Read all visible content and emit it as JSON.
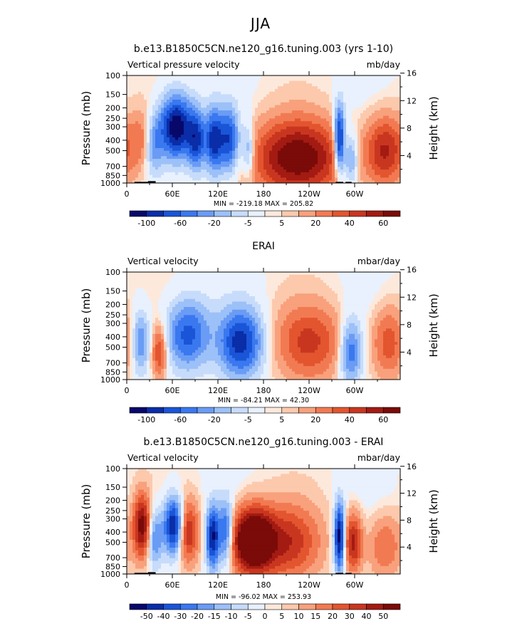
{
  "figure": {
    "title": "JJA"
  },
  "chart_data": [
    {
      "type": "heatmap",
      "title": "b.e13.B1850C5CN.ne120_g16.tuning.003 (yrs 1-10)",
      "left_string": "Vertical pressure velocity",
      "right_string": "mb/day",
      "ylabel": "Pressure (mb)",
      "ylabel_right": "Height (km)",
      "x_ticklabels": [
        "0",
        "60E",
        "120E",
        "180",
        "120W",
        "60W"
      ],
      "x_tick_lon": [
        0,
        60,
        120,
        180,
        240,
        300
      ],
      "xlim": [
        0,
        360
      ],
      "y_ticklabels": [
        "100",
        "150",
        "200",
        "250",
        "300",
        "400",
        "500",
        "700",
        "850",
        "1000"
      ],
      "y_tick_pressure": [
        100,
        150,
        200,
        250,
        300,
        400,
        500,
        700,
        850,
        1000
      ],
      "ylim": [
        1000,
        100
      ],
      "y_scale": "log",
      "y_right_ticklabels": [
        "4",
        "8",
        "12",
        "16"
      ],
      "y_right_height_km": [
        4,
        8,
        12,
        16
      ],
      "min_max_label": "MIN = -219.18   MAX = 205.82",
      "min": -219.18,
      "max": 205.82,
      "colorbar_labels": [
        "-100",
        "-60",
        "-20",
        "-5",
        "5",
        "20",
        "40",
        "60"
      ],
      "colorbar_levels": [
        -120,
        -100,
        -80,
        -60,
        -40,
        -20,
        -10,
        -5,
        0,
        5,
        10,
        20,
        40,
        60,
        80,
        100,
        120
      ],
      "topography": true,
      "features": [
        {
          "lon": 20,
          "amp": 0.7,
          "width": 10,
          "p_center": 400,
          "spread": 1.1
        },
        {
          "lon": 35,
          "amp": -1.0,
          "width": 9,
          "p_center": 450,
          "spread": 1.1
        },
        {
          "lon": 65,
          "amp": -2.6,
          "width": 15,
          "p_center": 300,
          "spread": 1.2
        },
        {
          "lon": 92,
          "amp": -1.7,
          "width": 8,
          "p_center": 400,
          "spread": 1.1
        },
        {
          "lon": 115,
          "amp": -2.0,
          "width": 8,
          "p_center": 400,
          "spread": 1.2
        },
        {
          "lon": 135,
          "amp": -1.8,
          "width": 9,
          "p_center": 400,
          "spread": 1.2
        },
        {
          "lon": 160,
          "amp": -1.0,
          "width": 6,
          "p_center": 500,
          "spread": 1.0
        },
        {
          "lon": 225,
          "amp": 2.2,
          "width": 40,
          "p_center": 580,
          "spread": 1.4
        },
        {
          "lon": 280,
          "amp": -2.4,
          "width": 5,
          "p_center": 400,
          "spread": 1.3
        },
        {
          "lon": 295,
          "amp": -1.2,
          "width": 7,
          "p_center": 600,
          "spread": 1.0
        },
        {
          "lon": 340,
          "amp": 1.5,
          "width": 18,
          "p_center": 500,
          "spread": 1.3
        }
      ]
    },
    {
      "type": "heatmap",
      "title": "ERAI",
      "left_string": "Vertical velocity",
      "right_string": "mbar/day",
      "ylabel": "Pressure (mb)",
      "ylabel_right": "Height (km)",
      "x_ticklabels": [
        "0",
        "60E",
        "120E",
        "180",
        "120W",
        "60W"
      ],
      "x_tick_lon": [
        0,
        60,
        120,
        180,
        240,
        300
      ],
      "xlim": [
        0,
        360
      ],
      "y_ticklabels": [
        "100",
        "150",
        "200",
        "250",
        "300",
        "400",
        "500",
        "700",
        "850",
        "1000"
      ],
      "y_tick_pressure": [
        100,
        150,
        200,
        250,
        300,
        400,
        500,
        700,
        850,
        1000
      ],
      "ylim": [
        1000,
        100
      ],
      "y_scale": "log",
      "y_right_ticklabels": [
        "4",
        "8",
        "12",
        "16"
      ],
      "y_right_height_km": [
        4,
        8,
        12,
        16
      ],
      "min_max_label": "MIN = -84.21   MAX =  42.30",
      "min": -84.21,
      "max": 42.3,
      "colorbar_labels": [
        "-100",
        "-60",
        "-20",
        "-5",
        "5",
        "20",
        "40",
        "60"
      ],
      "colorbar_levels": [
        -120,
        -100,
        -80,
        -60,
        -40,
        -20,
        -10,
        -5,
        0,
        5,
        10,
        20,
        40,
        60,
        80,
        100,
        120
      ],
      "topography": false,
      "features": [
        {
          "lon": 18,
          "amp": -1.1,
          "width": 8,
          "p_center": 450,
          "spread": 1.2
        },
        {
          "lon": 43,
          "amp": 1.2,
          "width": 7,
          "p_center": 550,
          "spread": 1.0
        },
        {
          "lon": 80,
          "amp": -1.6,
          "width": 20,
          "p_center": 380,
          "spread": 1.3
        },
        {
          "lon": 150,
          "amp": -2.0,
          "width": 20,
          "p_center": 450,
          "spread": 1.3
        },
        {
          "lon": 240,
          "amp": 1.2,
          "width": 30,
          "p_center": 450,
          "spread": 1.4
        },
        {
          "lon": 295,
          "amp": -1.4,
          "width": 10,
          "p_center": 550,
          "spread": 1.2
        },
        {
          "lon": 345,
          "amp": 1.0,
          "width": 15,
          "p_center": 450,
          "spread": 1.3
        }
      ]
    },
    {
      "type": "heatmap",
      "title": "b.e13.B1850C5CN.ne120_g16.tuning.003 - ERAI",
      "left_string": "Vertical velocity",
      "right_string": "mbar/day",
      "ylabel": "Pressure (mb)",
      "ylabel_right": "Height (km)",
      "x_ticklabels": [
        "0",
        "60E",
        "120E",
        "180",
        "120W",
        "60W"
      ],
      "x_tick_lon": [
        0,
        60,
        120,
        180,
        240,
        300
      ],
      "xlim": [
        0,
        360
      ],
      "y_ticklabels": [
        "100",
        "150",
        "200",
        "250",
        "300",
        "400",
        "500",
        "700",
        "850",
        "1000"
      ],
      "y_tick_pressure": [
        100,
        150,
        200,
        250,
        300,
        400,
        500,
        700,
        850,
        1000
      ],
      "ylim": [
        1000,
        100
      ],
      "y_scale": "log",
      "y_right_ticklabels": [
        "4",
        "8",
        "12",
        "16"
      ],
      "y_right_height_km": [
        4,
        8,
        12,
        16
      ],
      "min_max_label": "MIN = -96.02   MAX = 253.93",
      "min": -96.02,
      "max": 253.93,
      "colorbar_labels": [
        "-50",
        "-40",
        "-30",
        "-20",
        "-15",
        "-10",
        "-5",
        "0",
        "5",
        "10",
        "15",
        "20",
        "30",
        "40",
        "50"
      ],
      "colorbar_levels": [
        -60,
        -50,
        -40,
        -30,
        -20,
        -15,
        -10,
        -5,
        0,
        5,
        10,
        15,
        20,
        30,
        40,
        50,
        60
      ],
      "topography": true,
      "features": [
        {
          "lon": 20,
          "amp": 2.0,
          "width": 8,
          "p_center": 350,
          "spread": 1.2
        },
        {
          "lon": 37,
          "amp": -1.2,
          "width": 7,
          "p_center": 450,
          "spread": 1.1
        },
        {
          "lon": 62,
          "amp": -2.4,
          "width": 9,
          "p_center": 350,
          "spread": 1.1
        },
        {
          "lon": 80,
          "amp": 1.5,
          "width": 10,
          "p_center": 400,
          "spread": 1.2
        },
        {
          "lon": 113,
          "amp": -2.2,
          "width": 6,
          "p_center": 450,
          "spread": 1.2
        },
        {
          "lon": 130,
          "amp": -1.6,
          "width": 7,
          "p_center": 400,
          "spread": 1.2
        },
        {
          "lon": 165,
          "amp": 3.0,
          "width": 18,
          "p_center": 480,
          "spread": 1.2
        },
        {
          "lon": 210,
          "amp": 1.4,
          "width": 30,
          "p_center": 500,
          "spread": 1.4
        },
        {
          "lon": 280,
          "amp": -2.5,
          "width": 5,
          "p_center": 450,
          "spread": 1.3
        },
        {
          "lon": 298,
          "amp": 1.6,
          "width": 8,
          "p_center": 500,
          "spread": 1.1
        },
        {
          "lon": 340,
          "amp": 0.8,
          "width": 15,
          "p_center": 550,
          "spread": 1.2
        }
      ]
    }
  ],
  "colors": {
    "palette": [
      "#08086b",
      "#0a2da8",
      "#1a55d8",
      "#3a78f0",
      "#6a9cf5",
      "#9cc0f8",
      "#c7dcfb",
      "#e8f1fd",
      "#fde9dc",
      "#fcc9ad",
      "#f8a17c",
      "#f27a52",
      "#e3552f",
      "#c93620",
      "#a31b12",
      "#7a0b09"
    ],
    "topography": "#000000"
  }
}
